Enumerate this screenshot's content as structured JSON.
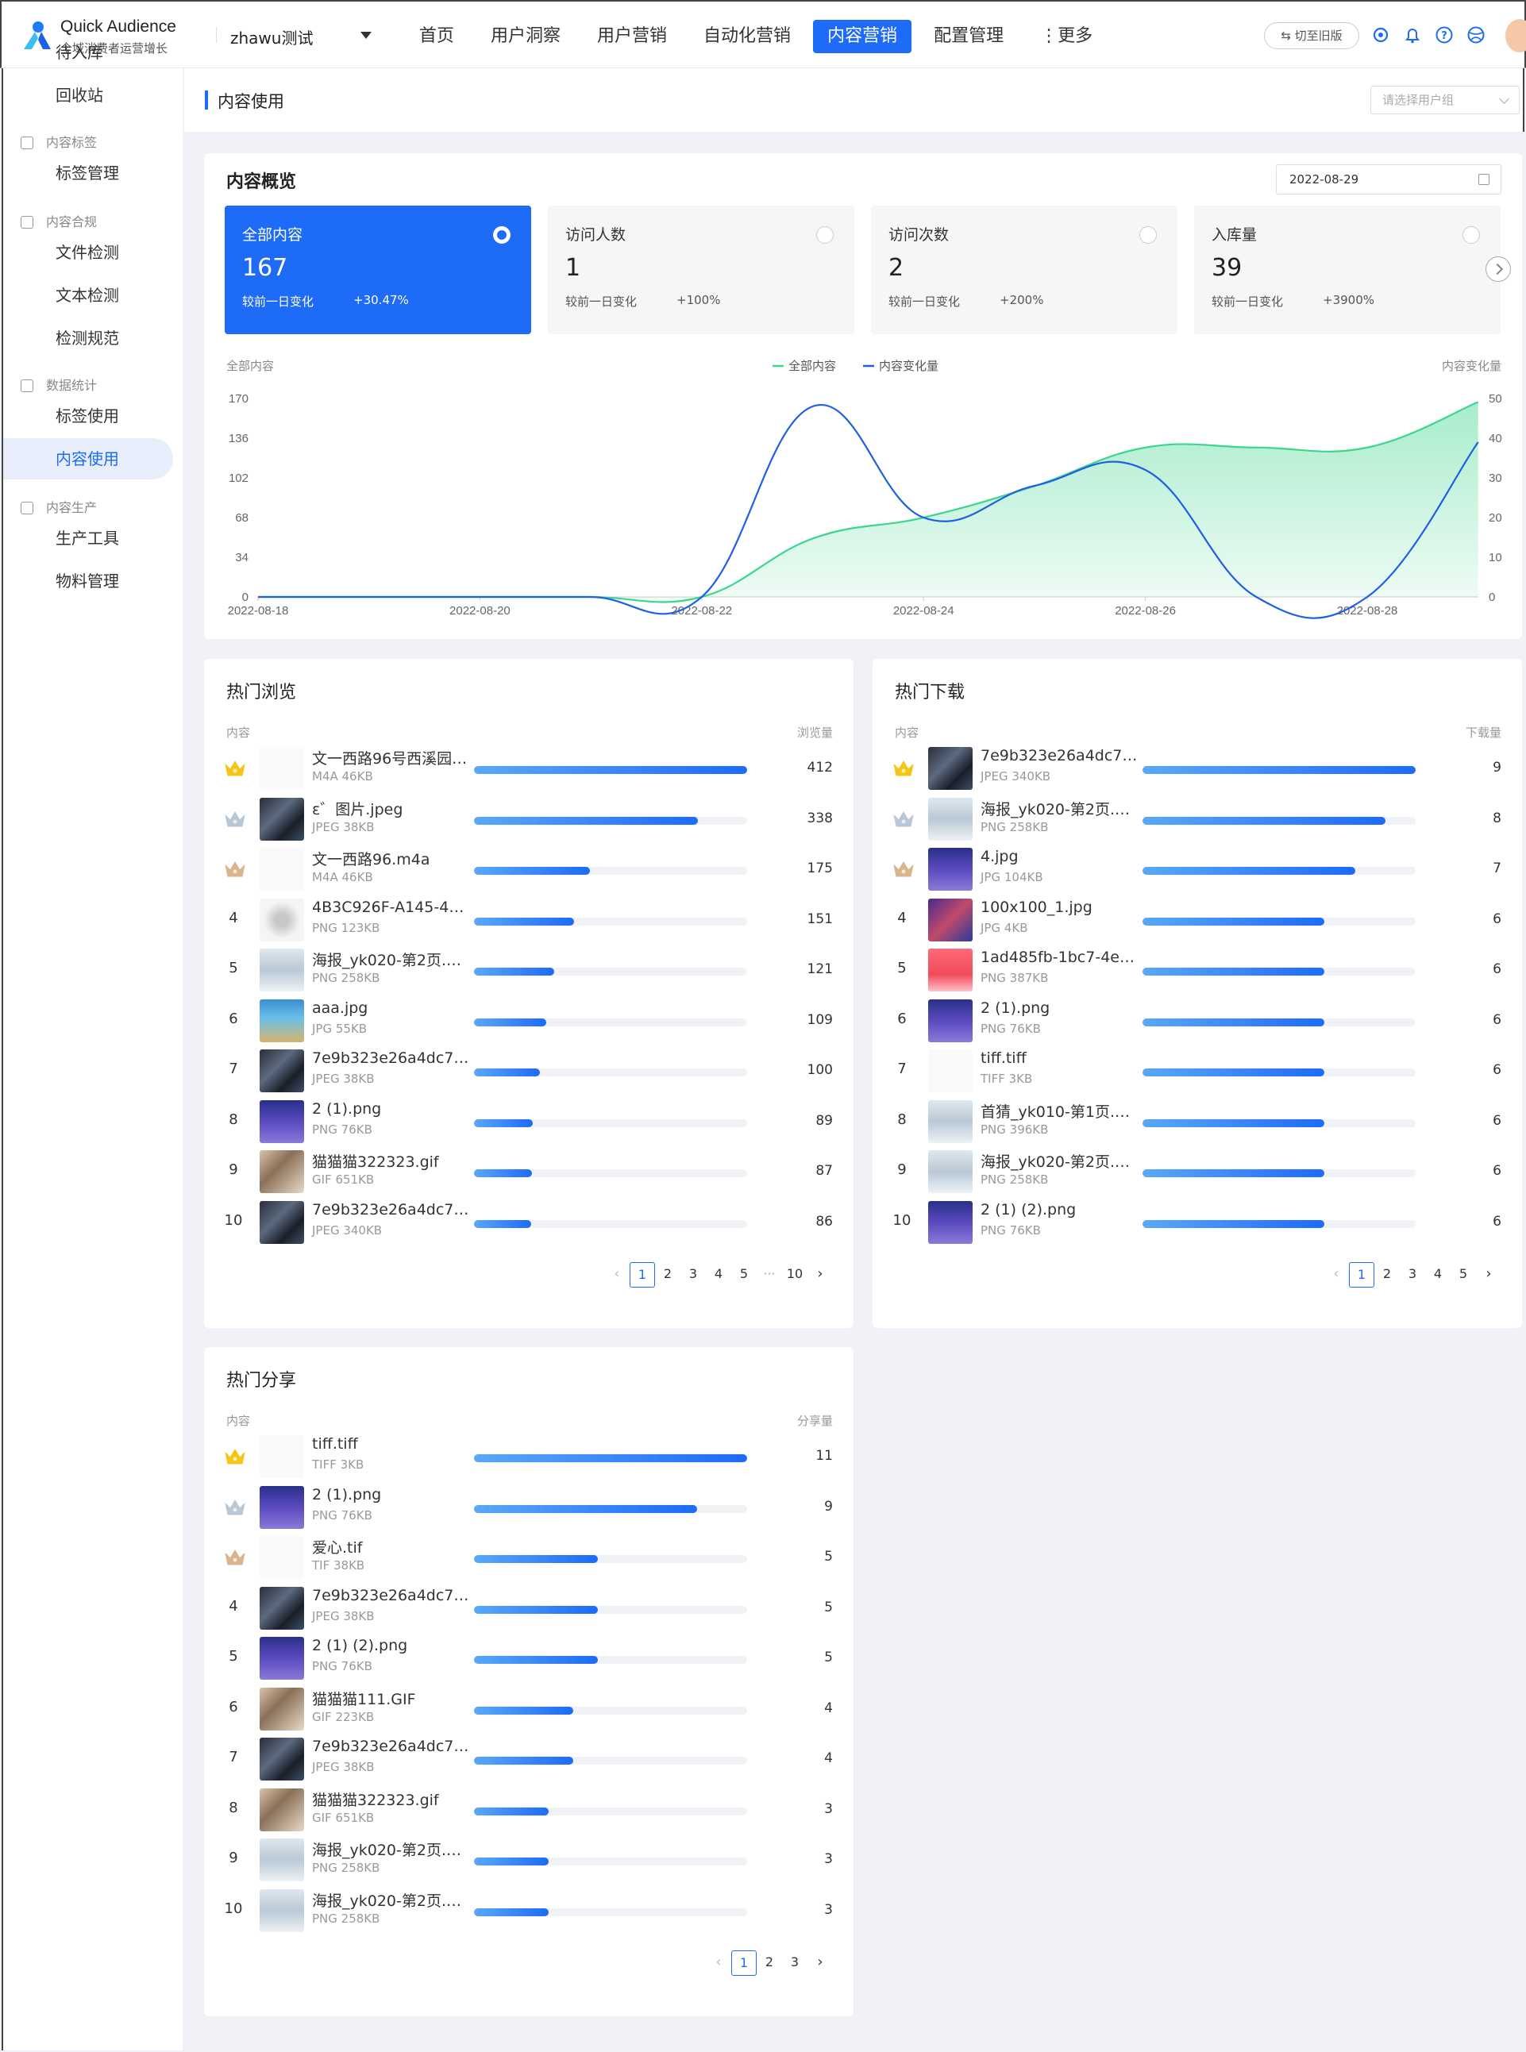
{
  "app": {
    "brand_title": "Quick Audience",
    "brand_subtitle": "全域消费者运营增长",
    "workspace": "zhawu测试",
    "nav": [
      "首页",
      "用户洞察",
      "用户营销",
      "自动化营销",
      "内容营销",
      "配置管理",
      "⋮更多"
    ],
    "active_nav": "内容营销",
    "switch_label": "⇆ 切至旧版"
  },
  "sidebar": {
    "items": [
      {
        "label": "待入库",
        "type": "item"
      },
      {
        "label": "回收站",
        "type": "item"
      },
      {
        "label": "内容标签",
        "type": "group"
      },
      {
        "label": "标签管理",
        "type": "item"
      },
      {
        "label": "内容合规",
        "type": "group"
      },
      {
        "label": "文件检测",
        "type": "item"
      },
      {
        "label": "文本检测",
        "type": "item"
      },
      {
        "label": "检测规范",
        "type": "item"
      },
      {
        "label": "数据统计",
        "type": "group"
      },
      {
        "label": "标签使用",
        "type": "item"
      },
      {
        "label": "内容使用",
        "type": "item",
        "active": true
      },
      {
        "label": "内容生产",
        "type": "group"
      },
      {
        "label": "生产工具",
        "type": "item"
      },
      {
        "label": "物料管理",
        "type": "item"
      }
    ]
  },
  "page": {
    "title": "内容使用",
    "user_group_placeholder": "请选择用户组"
  },
  "overview": {
    "title": "内容概览",
    "date": "2022-08-29",
    "cards": [
      {
        "title": "全部内容",
        "value": "167",
        "compare_label": "较前一日变化",
        "change": "+30.47%",
        "active": true
      },
      {
        "title": "访问人数",
        "value": "1",
        "compare_label": "较前一日变化",
        "change": "+100%"
      },
      {
        "title": "访问次数",
        "value": "2",
        "compare_label": "较前一日变化",
        "change": "+200%"
      },
      {
        "title": "入库量",
        "value": "39",
        "compare_label": "较前一日变化",
        "change": "+3900%"
      }
    ]
  },
  "chart_data": {
    "type": "area",
    "ylabel": "全部内容",
    "y2label": "内容变化量",
    "x": [
      "2022-08-18",
      "2022-08-19",
      "2022-08-20",
      "2022-08-21",
      "2022-08-22",
      "2022-08-23",
      "2022-08-24",
      "2022-08-25",
      "2022-08-26",
      "2022-08-27",
      "2022-08-28",
      "2022-08-29"
    ],
    "x_tick_labels": [
      "2022-08-18",
      "2022-08-20",
      "2022-08-22",
      "2022-08-24",
      "2022-08-26",
      "2022-08-28"
    ],
    "y_ticks": [
      0,
      34,
      68,
      102,
      136,
      170
    ],
    "y2_ticks": [
      0,
      10,
      20,
      30,
      40,
      50
    ],
    "ylim": [
      0,
      170
    ],
    "y2lim": [
      0,
      50
    ],
    "series": [
      {
        "name": "全部内容",
        "axis": "left",
        "color": "#3dd68c",
        "values": [
          0,
          0,
          0,
          0,
          0,
          50,
          68,
          95,
          128,
          128,
          128,
          167
        ]
      },
      {
        "name": "内容变化量",
        "axis": "right",
        "color": "#1d5fe6",
        "values": [
          0,
          0,
          0,
          0,
          0,
          48,
          20,
          28,
          32,
          0,
          0,
          39
        ]
      }
    ],
    "legend_position": "top-center"
  },
  "hot_browse": {
    "title": "热门浏览",
    "col_content": "内容",
    "col_value": "浏览量",
    "max": 412,
    "rows": [
      {
        "rank": "1",
        "name": "文一西路96号西溪园…",
        "meta": "M4A  46KB",
        "value": 412,
        "thumb": "blank"
      },
      {
        "rank": "2",
        "name": "ɛ゛图片.jpeg",
        "meta": "JPEG  38KB",
        "value": 338,
        "thumb": "dark"
      },
      {
        "rank": "3",
        "name": "文一西路96.m4a",
        "meta": "M4A  46KB",
        "value": 175,
        "thumb": "blank"
      },
      {
        "rank": "4",
        "name": "4B3C926F-A145-4E5…",
        "meta": "PNG  123KB",
        "value": 151,
        "thumb": "grey"
      },
      {
        "rank": "5",
        "name": "海报_yk020-第2页.png",
        "meta": "PNG  258KB",
        "value": 121,
        "thumb": "poster"
      },
      {
        "rank": "6",
        "name": "aaa.jpg",
        "meta": "JPG  55KB",
        "value": 109,
        "thumb": "sea"
      },
      {
        "rank": "7",
        "name": "7e9b323e26a4dc71d…",
        "meta": "JPEG  38KB",
        "value": 100,
        "thumb": "dark"
      },
      {
        "rank": "8",
        "name": "2 (1).png",
        "meta": "PNG  76KB",
        "value": 89,
        "thumb": "purple"
      },
      {
        "rank": "9",
        "name": "猫猫猫322323.gif",
        "meta": "GIF  651KB",
        "value": 87,
        "thumb": "cat"
      },
      {
        "rank": "10",
        "name": "7e9b323e26a4dc71d…",
        "meta": "JPEG  340KB",
        "value": 86,
        "thumb": "dark"
      }
    ],
    "pager": [
      "1",
      "2",
      "3",
      "4",
      "5",
      "···",
      "10"
    ]
  },
  "hot_download": {
    "title": "热门下载",
    "col_content": "内容",
    "col_value": "下载量",
    "max": 9,
    "rows": [
      {
        "rank": "1",
        "name": "7e9b323e26a4dc71d…",
        "meta": "JPEG  340KB",
        "value": 9,
        "thumb": "dark"
      },
      {
        "rank": "2",
        "name": "海报_yk020-第2页.png",
        "meta": "PNG  258KB",
        "value": 8,
        "thumb": "poster"
      },
      {
        "rank": "3",
        "name": "4.jpg",
        "meta": "JPG  104KB",
        "value": 7,
        "thumb": "purple"
      },
      {
        "rank": "4",
        "name": "100x100_1.jpg",
        "meta": "JPG  4KB",
        "value": 6,
        "thumb": "violet"
      },
      {
        "rank": "5",
        "name": "1ad485fb-1bc7-4e01-…",
        "meta": "PNG  387KB",
        "value": 6,
        "thumb": "red"
      },
      {
        "rank": "6",
        "name": "2 (1).png",
        "meta": "PNG  76KB",
        "value": 6,
        "thumb": "purple"
      },
      {
        "rank": "7",
        "name": "tiff.tiff",
        "meta": "TIFF  3KB",
        "value": 6,
        "thumb": "blank"
      },
      {
        "rank": "8",
        "name": "首猜_yk010-第1页.png",
        "meta": "PNG  396KB",
        "value": 6,
        "thumb": "poster"
      },
      {
        "rank": "9",
        "name": "海报_yk020-第2页.png",
        "meta": "PNG  258KB",
        "value": 6,
        "thumb": "poster"
      },
      {
        "rank": "10",
        "name": "2 (1) (2).png",
        "meta": "PNG  76KB",
        "value": 6,
        "thumb": "purple"
      }
    ],
    "pager": [
      "1",
      "2",
      "3",
      "4",
      "5"
    ]
  },
  "hot_share": {
    "title": "热门分享",
    "col_content": "内容",
    "col_value": "分享量",
    "max": 11,
    "rows": [
      {
        "rank": "1",
        "name": "tiff.tiff",
        "meta": "TIFF  3KB",
        "value": 11,
        "thumb": "blank"
      },
      {
        "rank": "2",
        "name": "2 (1).png",
        "meta": "PNG  76KB",
        "value": 9,
        "thumb": "purple"
      },
      {
        "rank": "3",
        "name": "爱心.tif",
        "meta": "TIF  38KB",
        "value": 5,
        "thumb": "blank"
      },
      {
        "rank": "4",
        "name": "7e9b323e26a4dc71d…",
        "meta": "JPEG  38KB",
        "value": 5,
        "thumb": "dark"
      },
      {
        "rank": "5",
        "name": "2 (1) (2).png",
        "meta": "PNG  76KB",
        "value": 5,
        "thumb": "purple"
      },
      {
        "rank": "6",
        "name": "猫猫猫111.GIF",
        "meta": "GIF  223KB",
        "value": 4,
        "thumb": "cat"
      },
      {
        "rank": "7",
        "name": "7e9b323e26a4dc71d…",
        "meta": "JPEG  38KB",
        "value": 4,
        "thumb": "dark"
      },
      {
        "rank": "8",
        "name": "猫猫猫322323.gif",
        "meta": "GIF  651KB",
        "value": 3,
        "thumb": "cat"
      },
      {
        "rank": "9",
        "name": "海报_yk020-第2页.png",
        "meta": "PNG  258KB",
        "value": 3,
        "thumb": "poster"
      },
      {
        "rank": "10",
        "name": "海报_yk020-第2页.png",
        "meta": "PNG  258KB",
        "value": 3,
        "thumb": "poster"
      }
    ],
    "pager": [
      "1",
      "2",
      "3"
    ]
  },
  "colors": {
    "accent": "#1d6bf6",
    "gold": "#f5c518",
    "silver": "#b9c7d6",
    "bronze": "#d9b48c"
  }
}
